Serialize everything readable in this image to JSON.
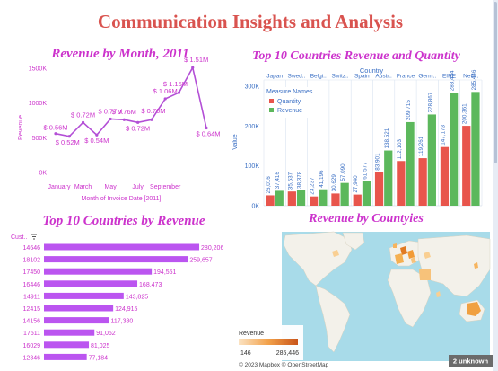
{
  "dashboard": {
    "title": "Communication Insights and Analysis",
    "colors": {
      "title": "#d9534f",
      "panel_title": "#cc33cc",
      "month_line": "#b34fd6",
      "quantity": "#e8554c",
      "revenue": "#5cb85c",
      "hbar": "#bb55f0",
      "ocean": "#a8dbe9",
      "land": "#f3f1ea",
      "country_fill": "#f59b28"
    }
  },
  "chart_data": [
    {
      "id": "revenue-by-month",
      "type": "line",
      "title": "Revenue by Month, 2011",
      "xlabel": "Month of Invoice Date [2011]",
      "ylabel": "Revenue",
      "x_tick_labels": [
        "January",
        "March",
        "May",
        "July",
        "September"
      ],
      "y_tick_labels": [
        "0K",
        "500K",
        "1000K",
        "1500K"
      ],
      "ylim": [
        0,
        1500000
      ],
      "x": [
        1,
        2,
        3,
        4,
        5,
        6,
        7,
        8,
        9,
        10,
        11,
        12
      ],
      "values": [
        560000,
        520000,
        720000,
        540000,
        770000,
        760000,
        720000,
        760000,
        1060000,
        1150000,
        1510000,
        640000
      ],
      "labels": [
        "$ 0.56M",
        "$ 0.52M",
        "$ 0.72M",
        "$ 0.54M",
        "$ 0.77M",
        "$ 0.76M",
        "$ 0.72M",
        "$ 0.76M",
        "$ 1.06M",
        "$ 1.15M",
        "$ 1.51M",
        "$ 0.64M"
      ]
    },
    {
      "id": "top10-revenue-quantity",
      "type": "bar",
      "title": "Top 10 Countries Revenue and Quantity",
      "header": "Country",
      "categories": [
        "Japan",
        "Swed..",
        "Belgi..",
        "Switz..",
        "Spain",
        "Austr..",
        "France",
        "Germ..",
        "EIRE",
        "Neth.."
      ],
      "ylabel": "Value",
      "y_tick_labels": [
        "0K",
        "100K",
        "200K",
        "300K"
      ],
      "ylim": [
        0,
        300000
      ],
      "legend_title": "Measure Names",
      "series": [
        {
          "name": "Quantity",
          "values": [
            26016,
            35637,
            23237,
            30629,
            27940,
            83901,
            112103,
            119261,
            147173,
            200361
          ],
          "labels": [
            "26,016",
            "35,637",
            "23,237",
            "30,629",
            "27,940",
            "83,901",
            "112,103",
            "119,261",
            "147,173",
            "200,361"
          ]
        },
        {
          "name": "Revenue",
          "values": [
            37416,
            38378,
            41196,
            57090,
            61577,
            138521,
            209715,
            228867,
            283454,
            285446
          ],
          "labels": [
            "37,416",
            "38,378",
            "41,196",
            "57,090",
            "61,577",
            "138,521",
            "209,715",
            "228,867",
            "283,454",
            "285,446"
          ]
        }
      ]
    },
    {
      "id": "top10-countries-by-revenue",
      "type": "bar",
      "orientation": "horizontal",
      "title": "Top 10 Countries by Revenue",
      "header": "Cust..",
      "categories": [
        "14646",
        "18102",
        "17450",
        "16446",
        "14911",
        "12415",
        "14156",
        "17511",
        "16029",
        "12346"
      ],
      "values": [
        280206,
        259657,
        194551,
        168473,
        143825,
        124915,
        117380,
        91062,
        81025,
        77184
      ],
      "labels": [
        "280,206",
        "259,657",
        "194,551",
        "168,473",
        "143,825",
        "124,915",
        "117,380",
        "91,062",
        "81,025",
        "77,184"
      ]
    }
  ],
  "map": {
    "title": "Revenue by Countyies",
    "legend_title": "Revenue",
    "legend_min": "146",
    "legend_max": "285,446",
    "attribution": "© 2023 Mapbox © OpenStreetMap",
    "unknown_badge": "2 unknown"
  }
}
